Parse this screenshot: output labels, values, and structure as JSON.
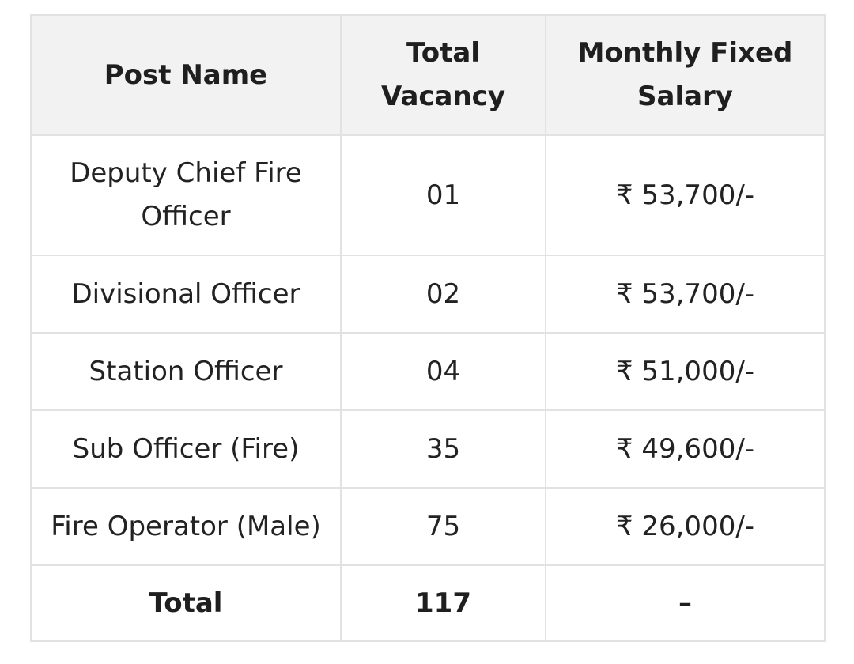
{
  "table": {
    "headers": [
      "Post Name",
      "Total Vacancy",
      "Monthly Fixed Salary"
    ],
    "rows": [
      {
        "post": "Deputy Chief Fire Officer",
        "vacancy": "01",
        "salary": "₹ 53,700/-"
      },
      {
        "post": "Divisional Officer",
        "vacancy": "02",
        "salary": "₹ 53,700/-"
      },
      {
        "post": "Station Officer",
        "vacancy": "04",
        "salary": "₹ 51,000/-"
      },
      {
        "post": "Sub Officer (Fire)",
        "vacancy": "35",
        "salary": "₹ 49,600/-"
      },
      {
        "post": "Fire Operator (Male)",
        "vacancy": "75",
        "salary": "₹ 26,000/-"
      }
    ],
    "total": {
      "label": "Total",
      "vacancy": "117",
      "salary": "–"
    }
  },
  "colors": {
    "header_background": "#f2f2f2",
    "border": "#e2e2e2",
    "text": "#222222"
  }
}
